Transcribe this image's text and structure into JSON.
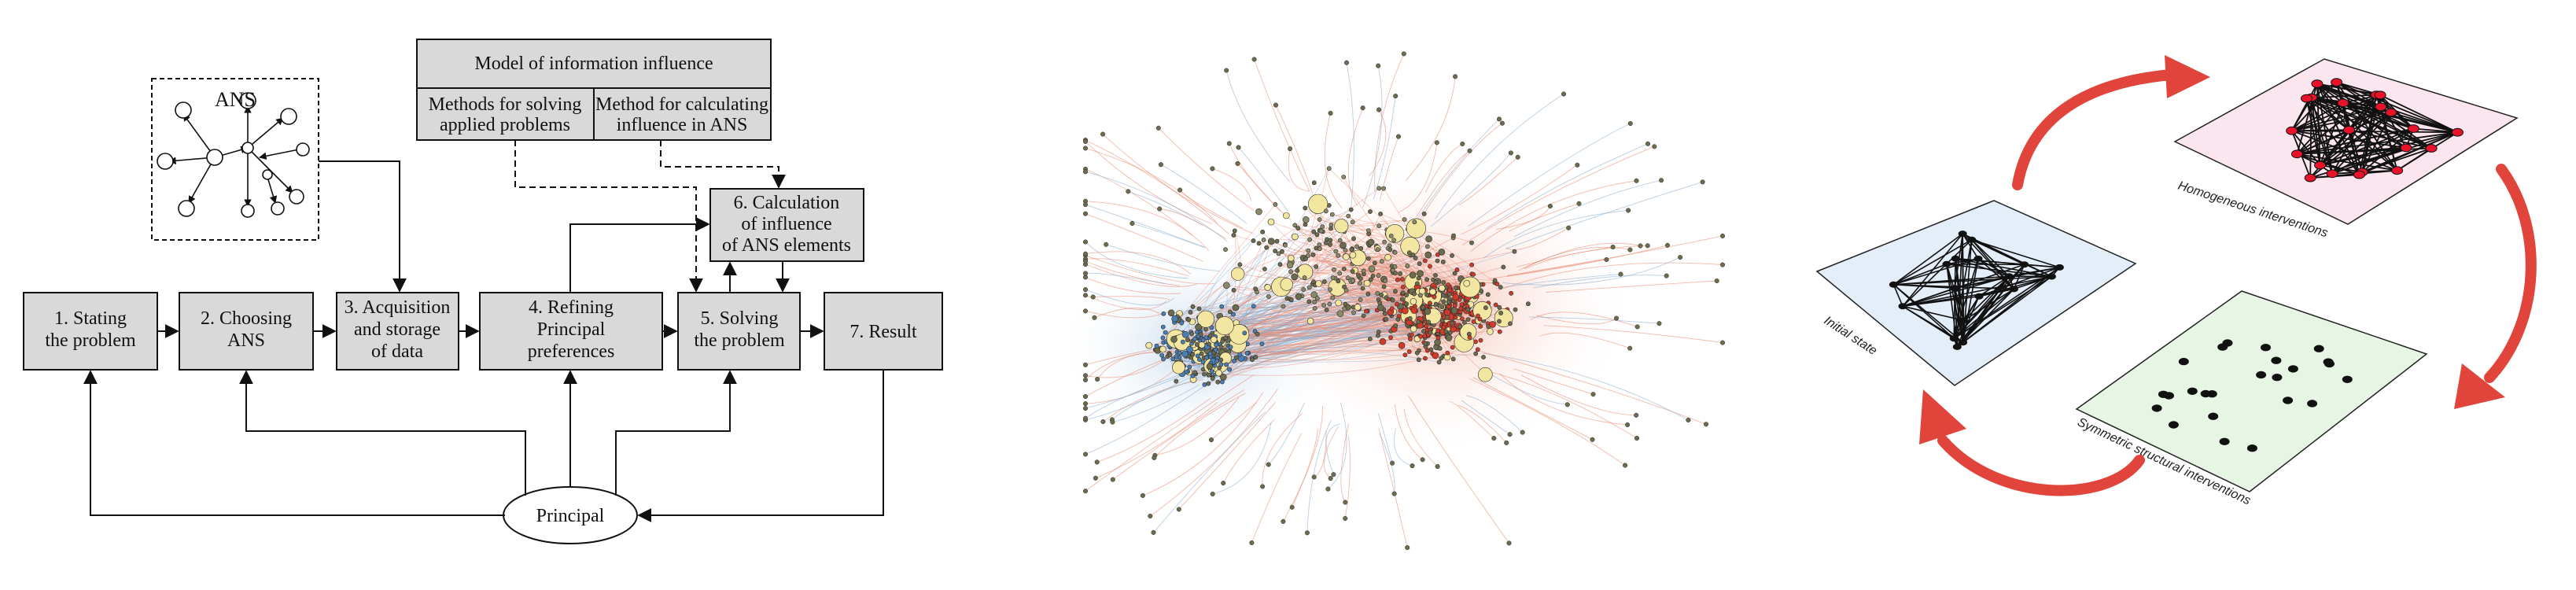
{
  "flowchart": {
    "model_title": "Model of information influence",
    "methods_solving": [
      "Methods for solving",
      "applied problems"
    ],
    "methods_calculating": [
      "Method for calculating",
      "influence in ANS"
    ],
    "ans_label": "ANS",
    "steps": [
      [
        "1. Stating",
        "the problem"
      ],
      [
        "2. Choosing",
        "ANS"
      ],
      [
        "3. Acquisition",
        "and storage",
        "of data"
      ],
      [
        "4. Refining",
        "Principal",
        "preferences"
      ],
      [
        "5. Solving",
        "the problem"
      ],
      [
        "6. Calculation",
        "of influence",
        "of ANS elements"
      ],
      [
        "7. Result"
      ]
    ],
    "principal": "Principal",
    "colors": {
      "shaded_box": "#d9d9d9",
      "white_box": "#ffffff",
      "line": "#111111"
    }
  },
  "network": {
    "colors": {
      "red_cluster": "#d23a2a",
      "blue_cluster": "#4a7fb5",
      "yellow_nodes": "#f2e6a0",
      "edge_red": "#e8826a",
      "edge_blue": "#7fa7c9"
    }
  },
  "interventions": {
    "initial_label": "Initial state",
    "homogeneous_label": "Homogeneous interventions",
    "symmetric_label": "Symmetric structural interventions",
    "colors": {
      "initial_panel": "#e3eef9",
      "homogeneous_panel": "#fbe6ef",
      "symmetric_panel": "#e6f5e4",
      "arrow": "#e0443a",
      "node_red": "#e8132b",
      "node_black": "#111111"
    }
  }
}
